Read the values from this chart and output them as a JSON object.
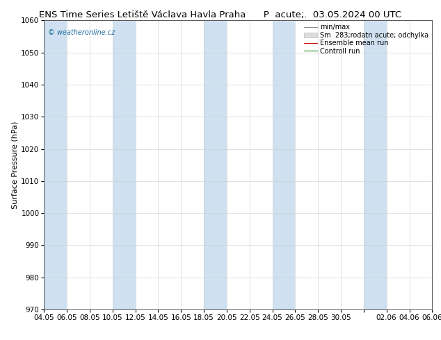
{
  "title_left": "ENS Time Series Letiště Václava Havla Praha",
  "title_right": "P  acute;.  03.05.2024 00 UTC",
  "ylabel": "Surface Pressure (hPa)",
  "ylim": [
    970,
    1060
  ],
  "yticks": [
    970,
    980,
    990,
    1000,
    1010,
    1020,
    1030,
    1040,
    1050,
    1060
  ],
  "xtick_labels": [
    "04.05",
    "06.05",
    "08.05",
    "10.05",
    "12.05",
    "14.05",
    "16.05",
    "18.05",
    "20.05",
    "22.05",
    "24.05",
    "26.05",
    "28.05",
    "30.05",
    "",
    "02.06",
    "04.06",
    "06.06"
  ],
  "band_color": "#cfe1f0",
  "white_color": "#ffffff",
  "fig_bg": "#ffffff",
  "plot_bg": "#ffffff",
  "watermark": "© weatheronline.cz",
  "watermark_color": "#1a6699",
  "legend_label1": "min/max",
  "legend_label2": "Sm  283;rodatn acute; odchylka",
  "legend_label3": "Ensemble mean run",
  "legend_label4": "Controll run",
  "legend_color1": "#888888",
  "legend_color2": "#bbbbbb",
  "legend_color3": "#cc0000",
  "legend_color4": "#228822",
  "title_fontsize": 9.5,
  "tick_fontsize": 7.5,
  "ylabel_fontsize": 8,
  "legend_fontsize": 7
}
